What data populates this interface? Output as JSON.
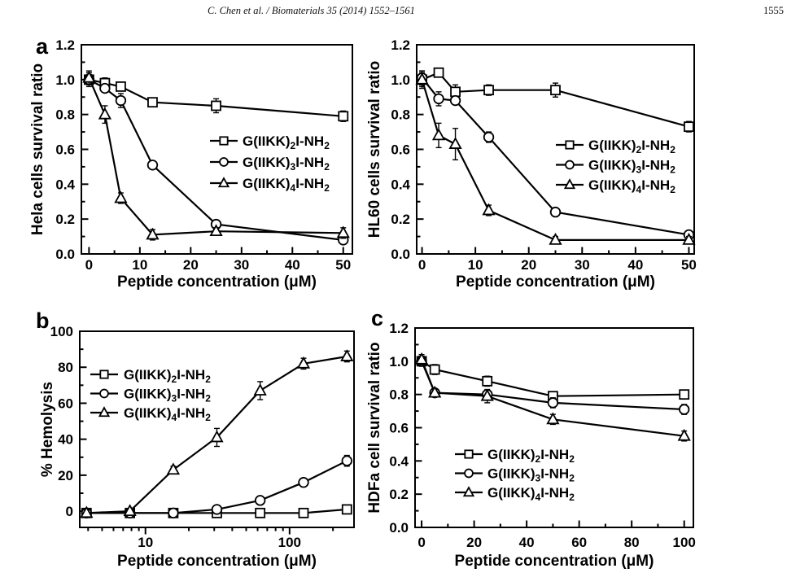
{
  "header": {
    "running_title": "C. Chen et al. / Biomaterials 35 (2014) 1552–1561",
    "page_number": "1555"
  },
  "chart_data": [
    {
      "id": "hela",
      "panel_label": "a",
      "type": "line",
      "title": "",
      "xlabel": "Peptide concentration (μM)",
      "ylabel": "Hela cells survival ratio",
      "xscale": "linear",
      "xlim": [
        -1.5,
        51.8
      ],
      "ylim": [
        0,
        1.2
      ],
      "xticks": [
        0,
        10,
        20,
        30,
        40,
        50
      ],
      "xtick_labels": [
        "0",
        "10",
        "20",
        "30",
        "40",
        "50"
      ],
      "xminor": [
        5,
        15,
        25,
        35,
        45
      ],
      "yticks": [
        0,
        0.2,
        0.4,
        0.6,
        0.8,
        1.0,
        1.2
      ],
      "ytick_labels": [
        "0.0",
        "0.2",
        "0.4",
        "0.6",
        "0.8",
        "1.0",
        "1.2"
      ],
      "yminor": [
        0.1,
        0.3,
        0.5,
        0.7,
        0.9,
        1.1
      ],
      "grid": false,
      "legend_position": "middle-right",
      "series": [
        {
          "name": "G(IIKK)_{2}I-NH_{2}",
          "marker": "square",
          "x": [
            0,
            3.125,
            6.25,
            12.5,
            25,
            50
          ],
          "y": [
            1.0,
            0.98,
            0.96,
            0.87,
            0.85,
            0.79
          ],
          "err": [
            0.04,
            0.03,
            0.02,
            0.02,
            0.04,
            0.03
          ]
        },
        {
          "name": "G(IIKK)_{3}I-NH_{2}",
          "marker": "circle",
          "x": [
            0,
            3.125,
            6.25,
            12.5,
            25,
            50
          ],
          "y": [
            1.0,
            0.95,
            0.88,
            0.51,
            0.17,
            0.08
          ],
          "err": [
            0.03,
            0.02,
            0.04,
            0.02,
            0.02,
            0.02
          ]
        },
        {
          "name": "G(IIKK)_{4}I-NH_{2}",
          "marker": "triangle",
          "x": [
            0,
            3.125,
            6.25,
            12.5,
            25,
            50
          ],
          "y": [
            1.01,
            0.8,
            0.32,
            0.11,
            0.13,
            0.12
          ],
          "err": [
            0.04,
            0.05,
            0.03,
            0.03,
            0.02,
            0.03
          ]
        }
      ]
    },
    {
      "id": "hl60",
      "panel_label": "",
      "type": "line",
      "title": "",
      "xlabel": "Peptide concentration (μM)",
      "ylabel": "HL60 cells survival ratio",
      "xscale": "linear",
      "xlim": [
        -1,
        51
      ],
      "ylim": [
        0,
        1.2
      ],
      "xticks": [
        0,
        10,
        20,
        30,
        40,
        50
      ],
      "xtick_labels": [
        "0",
        "10",
        "20",
        "30",
        "40",
        "50"
      ],
      "xminor": [
        5,
        15,
        25,
        35,
        45
      ],
      "yticks": [
        0,
        0.2,
        0.4,
        0.6,
        0.8,
        1.0,
        1.2
      ],
      "ytick_labels": [
        "0.0",
        "0.2",
        "0.4",
        "0.6",
        "0.8",
        "1.0",
        "1.2"
      ],
      "yminor": [
        0.1,
        0.3,
        0.5,
        0.7,
        0.9,
        1.1
      ],
      "grid": false,
      "legend_position": "middle-right",
      "series": [
        {
          "name": "G(IIKK)_{2}I-NH_{2}",
          "marker": "square",
          "x": [
            0,
            3.125,
            6.25,
            12.5,
            25,
            50
          ],
          "y": [
            1.0,
            1.04,
            0.93,
            0.94,
            0.94,
            0.73
          ],
          "err": [
            0.05,
            0.02,
            0.04,
            0.03,
            0.04,
            0.03
          ]
        },
        {
          "name": "G(IIKK)_{3}I-NH_{2}",
          "marker": "circle",
          "x": [
            0,
            3.125,
            6.25,
            12.5,
            25,
            50
          ],
          "y": [
            1.01,
            0.89,
            0.88,
            0.67,
            0.24,
            0.11
          ],
          "err": [
            0.04,
            0.04,
            0.02,
            0.03,
            0.02,
            0.02
          ]
        },
        {
          "name": "G(IIKK)_{4}I-NH_{2}",
          "marker": "triangle",
          "x": [
            0,
            3.125,
            6.25,
            12.5,
            25,
            50
          ],
          "y": [
            1.0,
            0.68,
            0.63,
            0.25,
            0.08,
            0.08
          ],
          "err": [
            0.04,
            0.07,
            0.09,
            0.03,
            0.02,
            0.02
          ]
        }
      ]
    },
    {
      "id": "hemolysis",
      "panel_label": "b",
      "type": "line",
      "title": "",
      "xlabel": "Peptide concentration (μM)",
      "ylabel": "% Hemolysis",
      "xscale": "log",
      "xlim": [
        3.5,
        280
      ],
      "ylim": [
        -9,
        100
      ],
      "xticks": [
        10,
        100
      ],
      "xtick_labels": [
        "10",
        "100"
      ],
      "xminor": [
        4,
        5,
        6,
        7,
        8,
        9,
        20,
        30,
        40,
        50,
        60,
        70,
        80,
        90,
        200
      ],
      "yticks": [
        0,
        20,
        40,
        60,
        80,
        100
      ],
      "ytick_labels": [
        "0",
        "20",
        "40",
        "60",
        "80",
        "100"
      ],
      "yminor": [
        10,
        30,
        50,
        70,
        90
      ],
      "grid": false,
      "legend_position": "top-left",
      "series": [
        {
          "name": "G(IIKK)_{2}I-NH_{2}",
          "marker": "square",
          "x": [
            3.9,
            7.8,
            15.6,
            31.3,
            62.5,
            125,
            250
          ],
          "y": [
            -1,
            -1,
            -1,
            -1,
            -1,
            -1,
            1
          ],
          "err": [
            1,
            1,
            1,
            2,
            1,
            1,
            2
          ]
        },
        {
          "name": "G(IIKK)_{3}I-NH_{2}",
          "marker": "circle",
          "x": [
            3.9,
            7.8,
            15.6,
            31.3,
            62.5,
            125,
            250
          ],
          "y": [
            -1,
            -1,
            -1,
            1,
            6,
            16,
            28
          ],
          "err": [
            1,
            1,
            1,
            2,
            1.5,
            1.5,
            3
          ]
        },
        {
          "name": "G(IIKK)_{4}I-NH_{2}",
          "marker": "triangle",
          "x": [
            3.9,
            7.8,
            15.6,
            31.3,
            62.5,
            125,
            250
          ],
          "y": [
            -1,
            0,
            23,
            41,
            67,
            82,
            86
          ],
          "err": [
            1,
            1,
            2,
            5,
            5,
            3,
            3
          ]
        }
      ]
    },
    {
      "id": "hdfa",
      "panel_label": "c",
      "type": "line",
      "title": "",
      "xlabel": "Peptide concentration (μM)",
      "ylabel": "HDFa cell survival ratio",
      "xscale": "linear",
      "xlim": [
        -2.5,
        103.5
      ],
      "ylim": [
        0,
        1.2
      ],
      "xticks": [
        0,
        20,
        40,
        60,
        80,
        100
      ],
      "xtick_labels": [
        "0",
        "20",
        "40",
        "60",
        "80",
        "100"
      ],
      "xminor": [
        10,
        30,
        50,
        70,
        90
      ],
      "yticks": [
        0,
        0.2,
        0.4,
        0.6,
        0.8,
        1.0,
        1.2
      ],
      "ytick_labels": [
        "0.0",
        "0.2",
        "0.4",
        "0.6",
        "0.8",
        "1.0",
        "1.2"
      ],
      "yminor": [
        0.1,
        0.3,
        0.5,
        0.7,
        0.9,
        1.1
      ],
      "grid": false,
      "legend_position": "bottom-left",
      "series": [
        {
          "name": "G(IIKK)_{2}I-NH_{2}",
          "marker": "square",
          "x": [
            0,
            5,
            25,
            50,
            100
          ],
          "y": [
            1.0,
            0.95,
            0.88,
            0.79,
            0.8
          ],
          "err": [
            0.03,
            0.03,
            0.03,
            0.02,
            0.02
          ]
        },
        {
          "name": "G(IIKK)_{3}I-NH_{2}",
          "marker": "circle",
          "x": [
            0,
            5,
            25,
            50,
            100
          ],
          "y": [
            1.0,
            0.81,
            0.8,
            0.75,
            0.71
          ],
          "err": [
            0.03,
            0.02,
            0.02,
            0.03,
            0.03
          ]
        },
        {
          "name": "G(IIKK)_{4}I-NH_{2}",
          "marker": "triangle",
          "x": [
            0,
            5,
            25,
            50,
            100
          ],
          "y": [
            1.01,
            0.81,
            0.79,
            0.65,
            0.55
          ],
          "err": [
            0.03,
            0.02,
            0.04,
            0.03,
            0.03
          ]
        }
      ]
    }
  ]
}
